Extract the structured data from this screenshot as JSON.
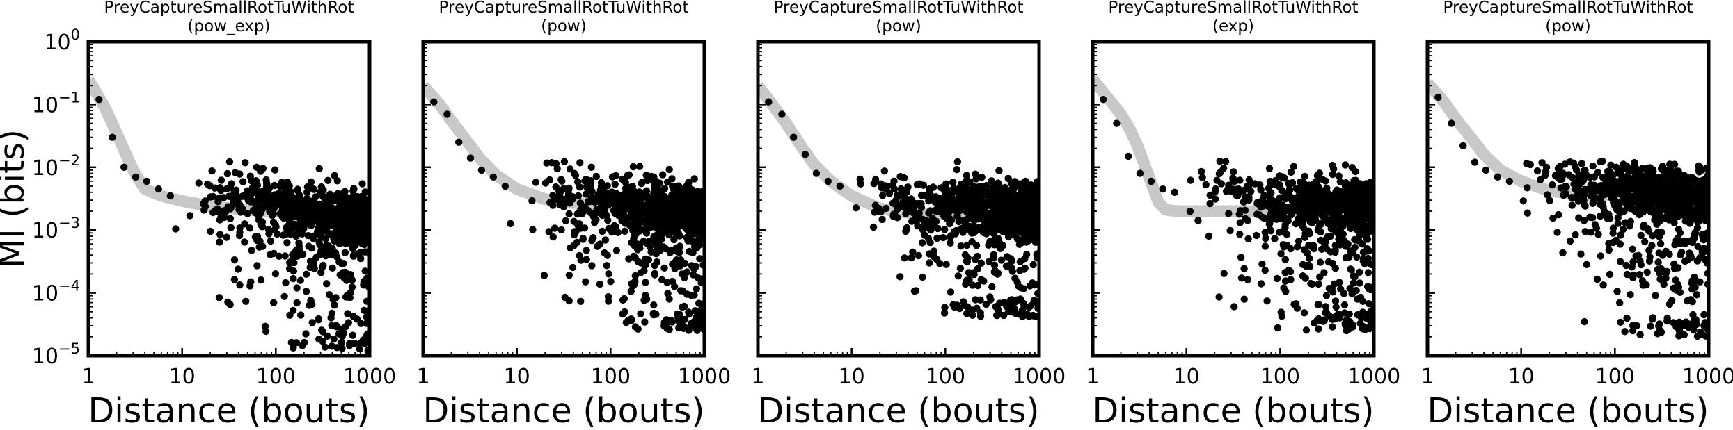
{
  "colors": {
    "background": "#ffffff",
    "points": "#000000",
    "fit_line": "#c8c8c8",
    "axes": "#000000"
  },
  "shared_axes": {
    "x_ticks": [
      "1",
      "10",
      "100",
      "1000"
    ],
    "y_ticks": [
      {
        "base": "10",
        "exp": "0"
      },
      {
        "base": "10",
        "exp": "−1"
      },
      {
        "base": "10",
        "exp": "−2"
      },
      {
        "base": "10",
        "exp": "−3"
      },
      {
        "base": "10",
        "exp": "−4"
      },
      {
        "base": "10",
        "exp": "−5"
      }
    ],
    "xlabel": "Distance (bouts)",
    "ylabel": "MI (bits)"
  },
  "chart_data": [
    {
      "type": "scatter",
      "title": "PreyCaptureSmallRotTuWithRot",
      "subtitle": "(pow_exp)",
      "xlabel": "Distance (bouts)",
      "ylabel": "MI (bits)",
      "x_scale": "log",
      "y_scale": "log",
      "xlim": [
        1,
        1000
      ],
      "ylim": [
        1e-05,
        1
      ],
      "grid": false,
      "scatter_sample": {
        "x": [
          1.3,
          1.8,
          2.4,
          3.2,
          4.2,
          5.6,
          7.5,
          10,
          13,
          18,
          24,
          32,
          42,
          56,
          75,
          100,
          133,
          178,
          237,
          316,
          422,
          562,
          750,
          1000
        ],
        "y": [
          0.12,
          0.03,
          0.01,
          0.007,
          0.006,
          0.0045,
          0.0035,
          0.004,
          0.003,
          0.0035,
          0.004,
          0.003,
          0.003,
          0.004,
          0.003,
          0.0028,
          0.0025,
          0.0022,
          0.002,
          0.0018,
          0.0016,
          0.0015,
          0.0014,
          0.0013
        ],
        "y_low_at_large_x": 1.2e-05
      },
      "fit_line": {
        "x": [
          1,
          1.5,
          2,
          3,
          4,
          6,
          10,
          20,
          50,
          100,
          300,
          1000
        ],
        "y": [
          0.25,
          0.09,
          0.035,
          0.009,
          0.0045,
          0.0035,
          0.0029,
          0.0024,
          0.0021,
          0.002,
          0.0019,
          0.0018
        ]
      }
    },
    {
      "type": "scatter",
      "title": "PreyCaptureSmallRotTuWithRot",
      "subtitle": "(pow)",
      "xlabel": "Distance (bouts)",
      "x_scale": "log",
      "y_scale": "log",
      "xlim": [
        1,
        1000
      ],
      "ylim": [
        1e-05,
        1
      ],
      "grid": false,
      "scatter_sample": {
        "x": [
          1.3,
          1.8,
          2.4,
          3.2,
          4.2,
          5.6,
          7.5,
          10,
          13,
          18,
          24,
          32,
          42,
          56,
          75,
          100,
          133,
          178,
          237,
          316,
          422,
          562,
          750,
          1000
        ],
        "y": [
          0.11,
          0.07,
          0.025,
          0.014,
          0.009,
          0.007,
          0.005,
          0.004,
          0.004,
          0.006,
          0.005,
          0.004,
          0.003,
          0.004,
          0.003,
          0.003,
          0.0028,
          0.0026,
          0.0024,
          0.0022,
          0.002,
          0.0019,
          0.0018,
          0.0017
        ],
        "y_low_at_large_x": 2.5e-05
      },
      "fit_line": {
        "x": [
          1,
          1.5,
          2,
          3,
          4,
          6,
          10,
          20,
          50,
          100,
          300,
          1000
        ],
        "y": [
          0.2,
          0.1,
          0.055,
          0.025,
          0.014,
          0.0075,
          0.0045,
          0.0031,
          0.0026,
          0.0025,
          0.0026,
          0.0028
        ]
      }
    },
    {
      "type": "scatter",
      "title": "PreyCaptureSmallRotTuWithRot",
      "subtitle": "(pow)",
      "xlabel": "Distance (bouts)",
      "x_scale": "log",
      "y_scale": "log",
      "xlim": [
        1,
        1000
      ],
      "ylim": [
        1e-05,
        1
      ],
      "grid": false,
      "scatter_sample": {
        "x": [
          1.3,
          1.8,
          2.4,
          3.2,
          4.2,
          5.6,
          7.5,
          10,
          13,
          18,
          24,
          32,
          42,
          56,
          75,
          100,
          133,
          178,
          237,
          316,
          422,
          562,
          750,
          1000
        ],
        "y": [
          0.11,
          0.07,
          0.03,
          0.016,
          0.008,
          0.006,
          0.005,
          0.0045,
          0.004,
          0.004,
          0.003,
          0.003,
          0.0028,
          0.0025,
          0.0025,
          0.0024,
          0.0024,
          0.0023,
          0.0022,
          0.0022,
          0.0021,
          0.0021,
          0.002,
          0.002
        ],
        "y_low_at_large_x": 4e-05
      },
      "fit_line": {
        "x": [
          1,
          1.5,
          2,
          3,
          4,
          6,
          10,
          20,
          50,
          100,
          300,
          1000
        ],
        "y": [
          0.2,
          0.09,
          0.05,
          0.02,
          0.011,
          0.006,
          0.0035,
          0.0022,
          0.0018,
          0.0018,
          0.002,
          0.0022
        ]
      }
    },
    {
      "type": "scatter",
      "title": "PreyCaptureSmallRotTuWithRot",
      "subtitle": "(exp)",
      "xlabel": "Distance (bouts)",
      "x_scale": "log",
      "y_scale": "log",
      "xlim": [
        1,
        1000
      ],
      "ylim": [
        1e-05,
        1
      ],
      "grid": false,
      "scatter_sample": {
        "x": [
          1.3,
          1.8,
          2.4,
          3.2,
          4.2,
          5.6,
          7.5,
          10,
          13,
          18,
          24,
          32,
          42,
          56,
          75,
          100,
          133,
          178,
          237,
          316,
          422,
          562,
          750,
          1000
        ],
        "y": [
          0.12,
          0.05,
          0.015,
          0.008,
          0.006,
          0.0045,
          0.004,
          0.0035,
          0.004,
          0.0045,
          0.005,
          0.004,
          0.0035,
          0.003,
          0.003,
          0.003,
          0.003,
          0.0028,
          0.0027,
          0.0026,
          0.0025,
          0.0025,
          0.0024,
          0.0024
        ],
        "y_low_at_large_x": 2.5e-05
      },
      "fit_line": {
        "x": [
          1,
          1.5,
          2,
          2.5,
          3,
          4,
          5,
          6,
          8,
          10,
          20,
          50,
          100,
          300,
          1000
        ],
        "y": [
          0.25,
          0.12,
          0.07,
          0.04,
          0.022,
          0.007,
          0.0028,
          0.0021,
          0.002,
          0.002,
          0.002,
          0.002,
          0.002,
          0.002,
          0.002
        ]
      }
    },
    {
      "type": "scatter",
      "title": "PreyCaptureSmallRotTuWithRot",
      "subtitle": "(pow)",
      "xlabel": "Distance (bouts)",
      "x_scale": "log",
      "y_scale": "log",
      "xlim": [
        1,
        1000
      ],
      "ylim": [
        1e-05,
        1
      ],
      "grid": false,
      "scatter_sample": {
        "x": [
          1.3,
          1.8,
          2.4,
          3.2,
          4.2,
          5.6,
          7.5,
          10,
          13,
          18,
          24,
          32,
          42,
          56,
          75,
          100,
          133,
          178,
          237,
          316,
          422,
          562,
          750,
          1000
        ],
        "y": [
          0.13,
          0.05,
          0.022,
          0.012,
          0.009,
          0.007,
          0.006,
          0.005,
          0.006,
          0.007,
          0.006,
          0.006,
          0.005,
          0.005,
          0.005,
          0.0045,
          0.0045,
          0.0042,
          0.004,
          0.004,
          0.0038,
          0.0036,
          0.0035,
          0.0035
        ],
        "y_low_at_large_x": 2e-05
      },
      "fit_line": {
        "x": [
          1,
          1.5,
          2,
          3,
          4,
          6,
          10,
          20,
          50,
          100,
          300,
          1000
        ],
        "y": [
          0.22,
          0.11,
          0.06,
          0.028,
          0.016,
          0.009,
          0.006,
          0.0042,
          0.0036,
          0.0035,
          0.0036,
          0.0038
        ]
      }
    }
  ]
}
